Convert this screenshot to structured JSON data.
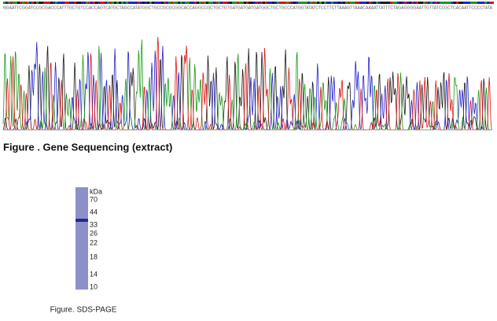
{
  "sequence": "NGAATTCGGATCCGCGACCCATTTGCTGTCCACCAGTCATGCTAGCCATATGGCTGCCGCGCGGCACCAGGCCGCTGCTGTGATGATGATGATGGCTGCTGCCCATGGTATATCTCCTTCTTAAAGTTAAACAAAATTATTTCTAGAGGGGAATTGTTATCCGCTCACAATTCCCCTATA",
  "sequencing_caption": "Figure . Gene Sequencing (extract)",
  "gel": {
    "unit": "kDa",
    "markers": [
      "70",
      "44",
      "33",
      "26",
      "22",
      "18",
      "14",
      "10"
    ]
  },
  "gel_caption": "Figure. SDS-PAGE"
}
